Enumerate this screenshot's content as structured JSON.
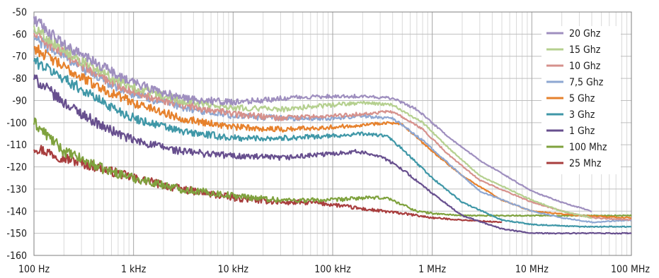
{
  "chart_data": {
    "type": "line",
    "title": "",
    "xlabel": "",
    "ylabel": "",
    "x_scale": "log",
    "xlim": [
      100,
      100000000
    ],
    "ylim": [
      -160,
      -50
    ],
    "grid": true,
    "legend_position": "top-right",
    "x_ticks": [
      {
        "value": 100,
        "label": "100 Hz"
      },
      {
        "value": 1000,
        "label": "1 kHz"
      },
      {
        "value": 10000,
        "label": "10 kHz"
      },
      {
        "value": 100000,
        "label": "100 kHz"
      },
      {
        "value": 1000000,
        "label": "1 MHz"
      },
      {
        "value": 10000000,
        "label": "10 MHz"
      },
      {
        "value": 100000000,
        "label": "100 MHz"
      }
    ],
    "y_ticks": [
      {
        "value": -50,
        "label": "-50"
      },
      {
        "value": -60,
        "label": "-60"
      },
      {
        "value": -70,
        "label": "-70"
      },
      {
        "value": -80,
        "label": "-80"
      },
      {
        "value": -90,
        "label": "-90"
      },
      {
        "value": -100,
        "label": "-100"
      },
      {
        "value": -110,
        "label": "-110"
      },
      {
        "value": -120,
        "label": "-120"
      },
      {
        "value": -130,
        "label": "-130"
      },
      {
        "value": -140,
        "label": "-140"
      },
      {
        "value": -150,
        "label": "-150"
      },
      {
        "value": -160,
        "label": "-160"
      }
    ],
    "series": [
      {
        "name": "20 Ghz",
        "color": "#9f8fbf",
        "x": [
          100,
          200,
          500,
          1000,
          3000,
          10000,
          30000,
          100000,
          200000,
          400000,
          700000,
          1500000,
          3000000,
          10000000,
          20000000,
          40000000
        ],
        "y": [
          -53,
          -65,
          -75,
          -82,
          -89,
          -91,
          -89,
          -88,
          -88,
          -89,
          -94,
          -107,
          -117,
          -131,
          -136,
          -140
        ]
      },
      {
        "name": "15 Ghz",
        "color": "#b5d08f",
        "x": [
          100,
          200,
          500,
          1000,
          3000,
          10000,
          30000,
          100000,
          200000,
          400000,
          800000,
          1500000,
          3000000,
          10000000,
          20000000,
          40000000
        ],
        "y": [
          -57,
          -67,
          -78,
          -84,
          -90,
          -93,
          -94,
          -92,
          -91,
          -92,
          -100,
          -112,
          -124,
          -135,
          -140,
          -143
        ]
      },
      {
        "name": "10 Ghz",
        "color": "#d6918c",
        "x": [
          100,
          200,
          500,
          1000,
          3000,
          10000,
          30000,
          100000,
          200000,
          400000,
          800000,
          1500000,
          3000000,
          10000000,
          20000000,
          40000000,
          100000000
        ],
        "y": [
          -60,
          -69,
          -80,
          -86,
          -92,
          -96,
          -98,
          -97,
          -96,
          -95,
          -103,
          -115,
          -126,
          -136,
          -140,
          -143,
          -144
        ]
      },
      {
        "name": "7,5 Ghz",
        "color": "#8ea7d2",
        "x": [
          100,
          200,
          500,
          1000,
          3000,
          10000,
          30000,
          100000,
          200000,
          400000,
          800000,
          1500000,
          3000000,
          10000000,
          20000000,
          40000000,
          100000000
        ],
        "y": [
          -62,
          -70,
          -81,
          -87,
          -93,
          -97,
          -98,
          -98,
          -97,
          -98,
          -108,
          -119,
          -131,
          -140,
          -143,
          -145,
          -144
        ]
      },
      {
        "name": "5 Ghz",
        "color": "#e6812c",
        "x": [
          100,
          200,
          500,
          1000,
          3000,
          10000,
          30000,
          100000,
          200000,
          350000,
          500000,
          1000000,
          2000000,
          5000000,
          10000000,
          30000000,
          100000000
        ],
        "y": [
          -66,
          -75,
          -85,
          -91,
          -98,
          -102,
          -103,
          -102,
          -101,
          -100,
          -101,
          -113,
          -124,
          -135,
          -140,
          -142,
          -143
        ]
      },
      {
        "name": "3 Ghz",
        "color": "#3f97a7",
        "x": [
          100,
          200,
          500,
          1000,
          3000,
          10000,
          30000,
          100000,
          200000,
          350000,
          500000,
          1000000,
          2000000,
          5000000,
          10000000,
          30000000,
          100000000
        ],
        "y": [
          -72,
          -80,
          -91,
          -98,
          -104,
          -107,
          -107,
          -106,
          -105,
          -106,
          -112,
          -125,
          -136,
          -144,
          -146,
          -147,
          -147
        ]
      },
      {
        "name": "1 Ghz",
        "color": "#674f8e",
        "x": [
          100,
          200,
          500,
          1000,
          3000,
          10000,
          30000,
          100000,
          170000,
          300000,
          500000,
          1000000,
          2000000,
          5000000,
          10000000,
          30000000,
          100000000
        ],
        "y": [
          -80,
          -91,
          -102,
          -108,
          -113,
          -115,
          -116,
          -114,
          -113,
          -115,
          -121,
          -132,
          -142,
          -148,
          -150,
          -150,
          -150
        ]
      },
      {
        "name": "100 Mhz",
        "color": "#7fa23e",
        "x": [
          100,
          200,
          500,
          1000,
          3000,
          10000,
          30000,
          100000,
          200000,
          350000,
          500000,
          700000,
          1000000,
          2000000,
          5000000,
          10000000,
          30000000,
          100000000
        ],
        "y": [
          -100,
          -113,
          -121,
          -125,
          -130,
          -133,
          -135,
          -135,
          -134,
          -134,
          -137,
          -140,
          -141,
          -142,
          -142,
          -142,
          -142,
          -142
        ]
      },
      {
        "name": "25 Mhz",
        "color": "#a83d3d",
        "x": [
          100,
          200,
          500,
          1000,
          3000,
          10000,
          30000,
          60000,
          100000,
          200000,
          500000,
          1000000,
          2000000,
          5000000
        ],
        "y": [
          -111,
          -116,
          -121,
          -125,
          -130,
          -134,
          -136,
          -136,
          -137,
          -139,
          -141,
          -143,
          -144,
          -145
        ]
      }
    ]
  }
}
